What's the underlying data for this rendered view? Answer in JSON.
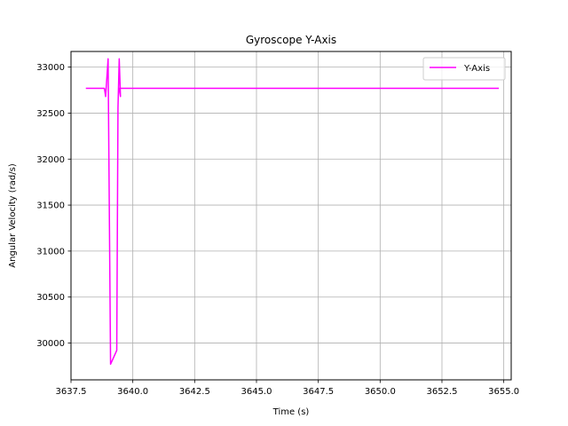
{
  "chart_data": {
    "type": "line",
    "title": "Gyroscope Y-Axis",
    "xlabel": "Time (s)",
    "ylabel": "Angular Velocity (rad/s)",
    "xlim": [
      3637.5,
      3655.3
    ],
    "ylim": [
      29600,
      33170
    ],
    "xticks": [
      3637.5,
      3640.0,
      3642.5,
      3645.0,
      3647.5,
      3650.0,
      3652.5,
      3655.0
    ],
    "xtick_labels": [
      "3637.5",
      "3640.0",
      "3642.5",
      "3645.0",
      "3647.5",
      "3650.0",
      "3652.5",
      "3655.0"
    ],
    "yticks": [
      30000,
      30500,
      31000,
      31500,
      32000,
      32500,
      33000
    ],
    "ytick_labels": [
      "30000",
      "30500",
      "31000",
      "31500",
      "32000",
      "32500",
      "33000"
    ],
    "grid": true,
    "legend_position": "top-right",
    "series": [
      {
        "name": "Y-Axis",
        "color": "#ff00ff",
        "x": [
          3638.1,
          3638.7,
          3638.85,
          3638.9,
          3639.0,
          3639.1,
          3639.35,
          3639.4,
          3639.45,
          3639.5,
          3639.45,
          3639.5,
          3645.0,
          3650.0,
          3654.8
        ],
        "y": [
          32770,
          32770,
          32770,
          32680,
          33090,
          29770,
          29920,
          32560,
          33090,
          32680,
          32770,
          32770,
          32770,
          32770,
          32770
        ]
      }
    ]
  }
}
